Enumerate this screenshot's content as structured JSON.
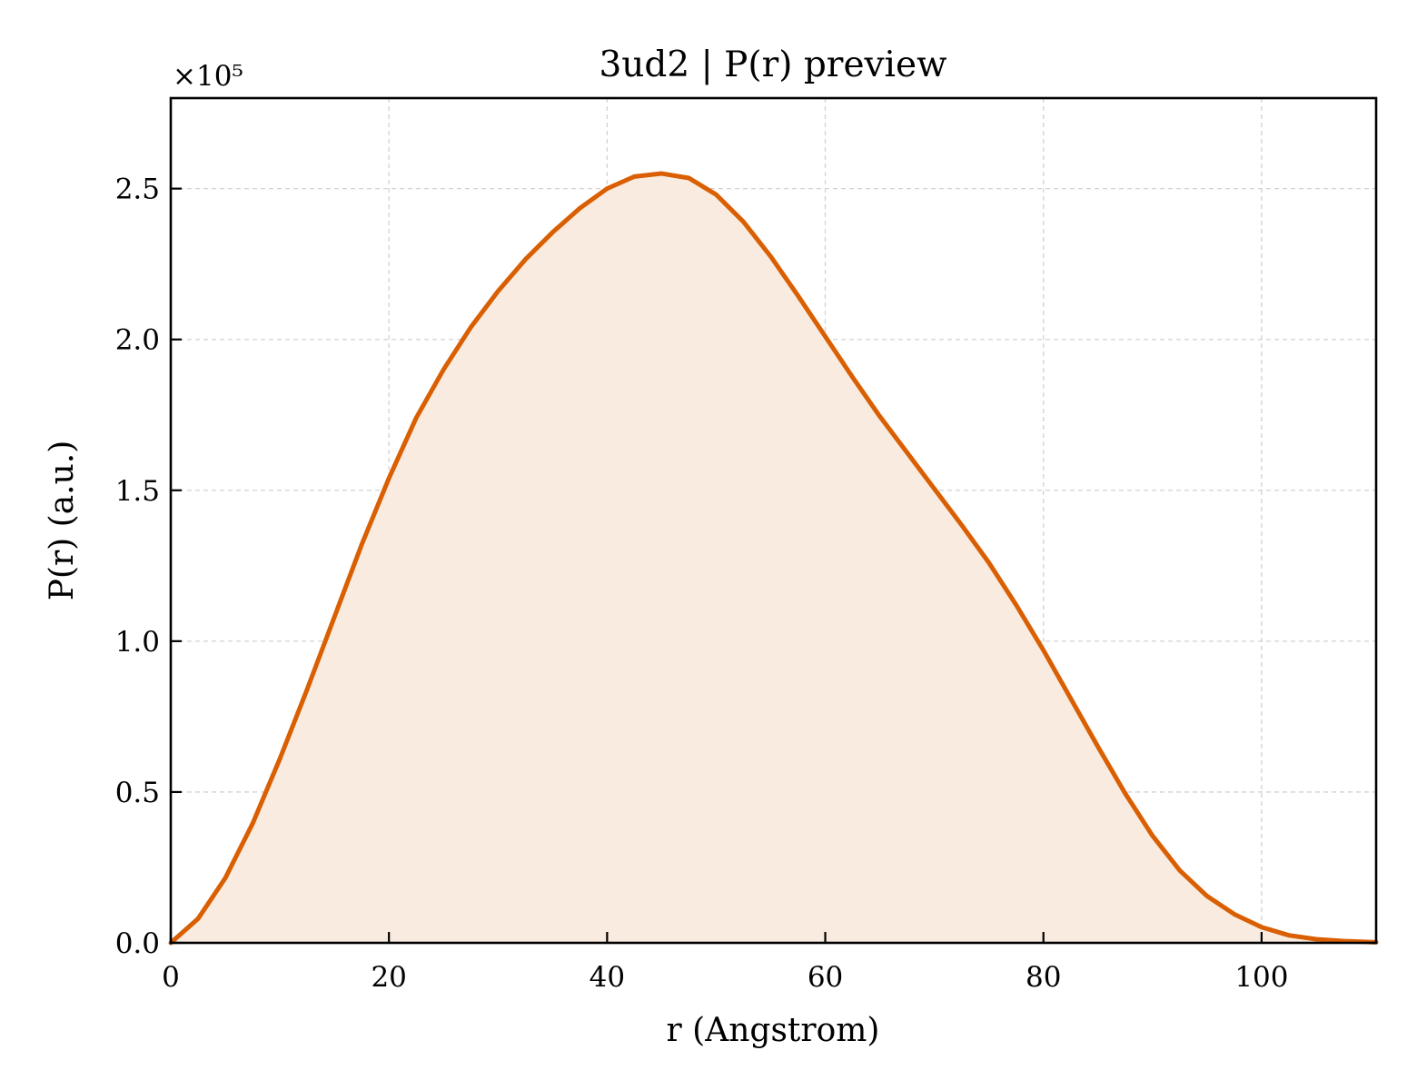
{
  "chart_data": {
    "type": "area",
    "title": "3ud2 | P(r) preview",
    "xlabel": "r (Angstrom)",
    "ylabel": "P(r) (a.u.)",
    "y_offset_label": "×10⁵",
    "xlim": [
      0,
      110.5
    ],
    "ylim": [
      0,
      2.8
    ],
    "xticks": [
      0,
      20,
      40,
      60,
      80,
      100
    ],
    "yticks": [
      0.0,
      0.5,
      1.0,
      1.5,
      2.0,
      2.5
    ],
    "xtick_labels": [
      "0",
      "20",
      "40",
      "60",
      "80",
      "100"
    ],
    "ytick_labels": [
      "0.0",
      "0.5",
      "1.0",
      "1.5",
      "2.0",
      "2.5"
    ],
    "grid": true,
    "series": [
      {
        "line_color": "#d95f02",
        "fill_color": "#f9ebe0",
        "x": [
          0,
          2.5,
          5,
          7.5,
          10,
          12.5,
          15,
          17.5,
          20,
          22.5,
          25,
          27.5,
          30,
          32.5,
          35,
          37.5,
          40,
          42.5,
          45,
          47.5,
          50,
          52.5,
          55,
          57.5,
          60,
          62.5,
          65,
          67.5,
          70,
          72.5,
          75,
          77.5,
          80,
          82.5,
          85,
          87.5,
          90,
          92.5,
          95,
          97.5,
          100,
          102.5,
          105,
          107.5,
          110.5
        ],
        "y": [
          0.0,
          0.08,
          0.215,
          0.395,
          0.61,
          0.84,
          1.08,
          1.32,
          1.54,
          1.74,
          1.9,
          2.04,
          2.16,
          2.265,
          2.355,
          2.435,
          2.5,
          2.54,
          2.55,
          2.535,
          2.48,
          2.39,
          2.275,
          2.145,
          2.01,
          1.875,
          1.745,
          1.625,
          1.505,
          1.385,
          1.26,
          1.12,
          0.97,
          0.81,
          0.65,
          0.495,
          0.355,
          0.24,
          0.155,
          0.095,
          0.052,
          0.025,
          0.012,
          0.006,
          0.002
        ]
      }
    ]
  }
}
